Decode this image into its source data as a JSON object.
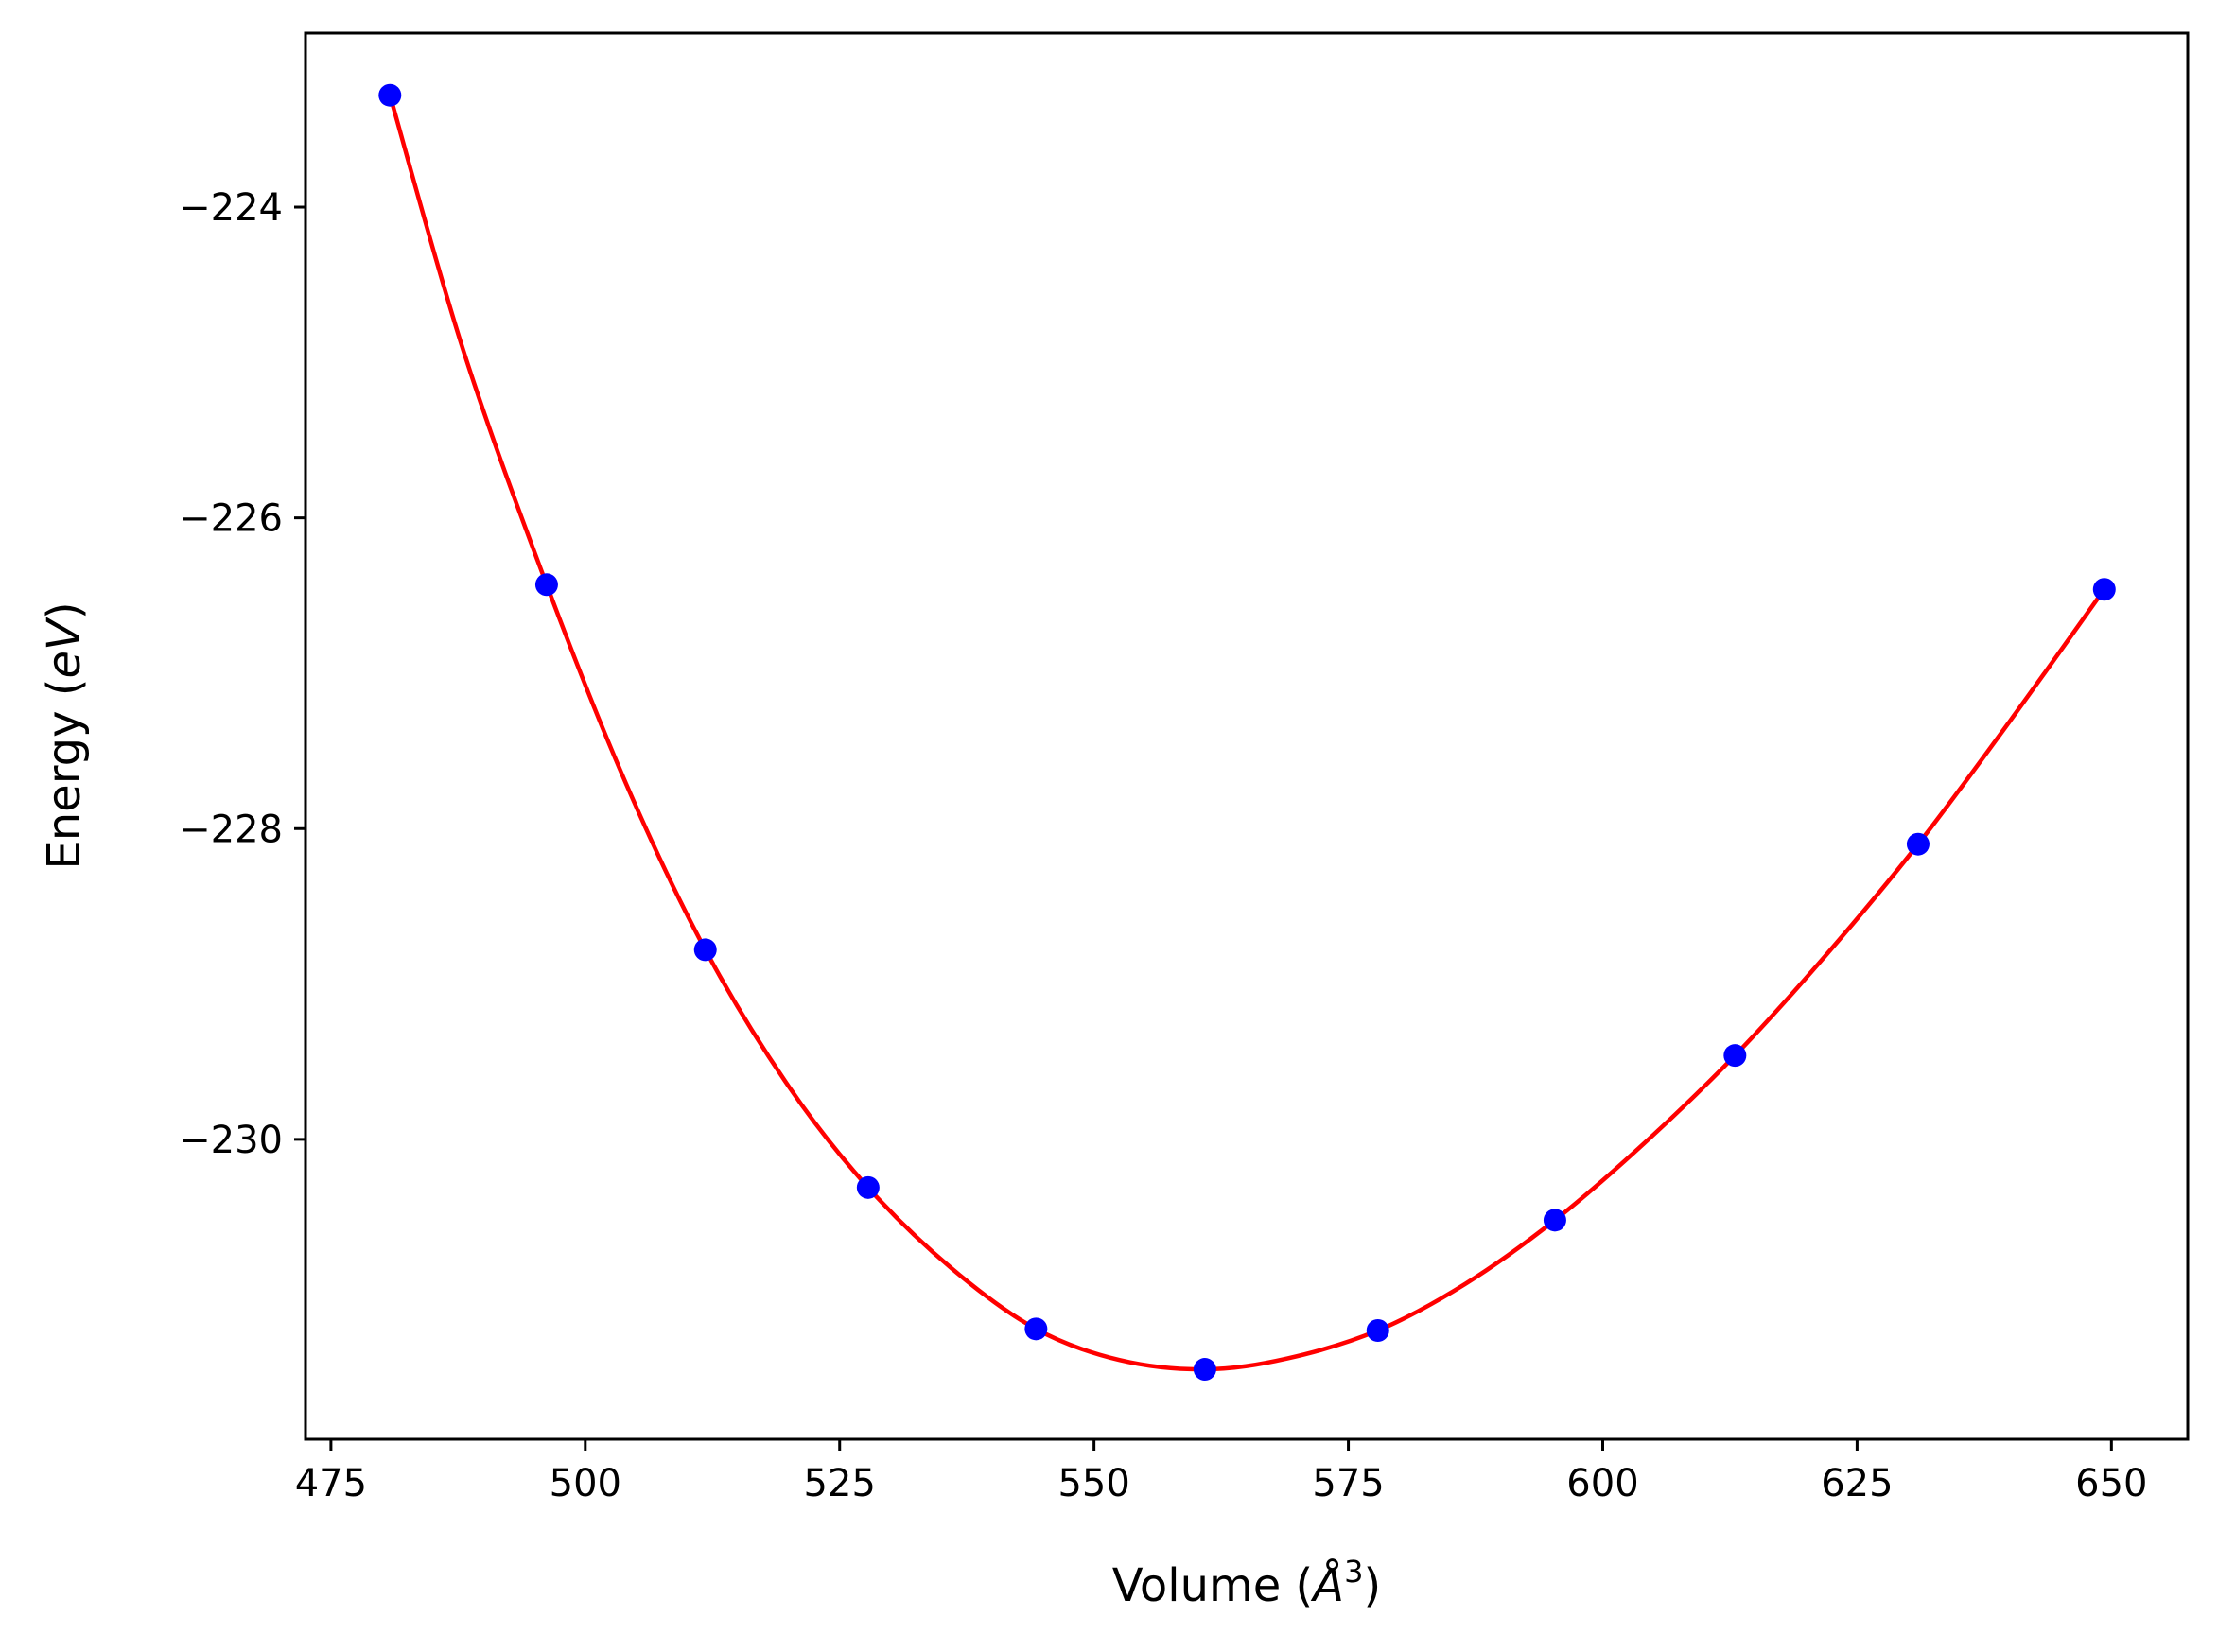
{
  "chart_data": {
    "type": "scatter",
    "title": "",
    "xlabel": "Volume",
    "xlabel_unit": "Å",
    "xlabel_unit_power": "3",
    "ylabel": "Energy",
    "ylabel_unit": "eV",
    "xlim": [
      472.5,
      657.5
    ],
    "ylim": [
      -231.93,
      -222.88
    ],
    "xticks": [
      475,
      500,
      525,
      550,
      575,
      600,
      625,
      650
    ],
    "yticks": [
      -224,
      -226,
      -228,
      -230
    ],
    "grid": false,
    "series": [
      {
        "kind": "points",
        "color": "#0000ff",
        "x": [
          480.8,
          496.2,
          511.8,
          527.8,
          544.3,
          560.9,
          577.9,
          595.3,
          613.0,
          631.0,
          649.3
        ],
        "y": [
          -223.28,
          -226.43,
          -228.78,
          -230.31,
          -231.22,
          -231.48,
          -231.23,
          -230.52,
          -229.46,
          -228.1,
          -226.46
        ]
      },
      {
        "kind": "fit-curve",
        "color": "#ff0000",
        "x": [
          480.8,
          488.0,
          496.2,
          504.0,
          511.8,
          520.0,
          527.8,
          536.0,
          544.3,
          552.5,
          560.9,
          569.0,
          577.9,
          586.5,
          595.3,
          604.0,
          613.0,
          622.0,
          631.0,
          640.0,
          649.3
        ],
        "y": [
          -223.28,
          -224.92,
          -226.43,
          -227.71,
          -228.78,
          -229.66,
          -230.31,
          -230.83,
          -231.22,
          -231.42,
          -231.48,
          -231.41,
          -231.23,
          -230.93,
          -230.52,
          -230.03,
          -229.46,
          -228.81,
          -228.1,
          -227.31,
          -226.46
        ]
      }
    ]
  }
}
